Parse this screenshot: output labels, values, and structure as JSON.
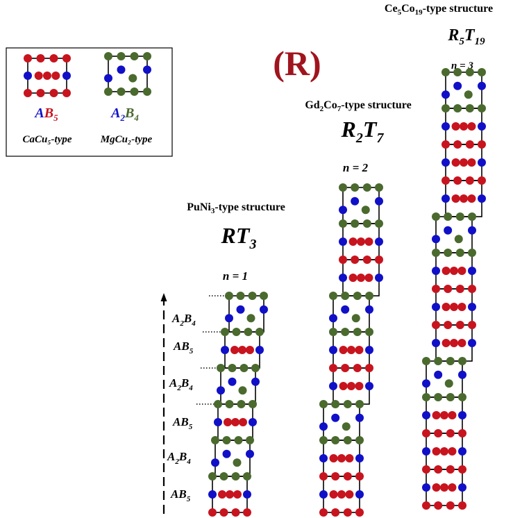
{
  "label": "(R)",
  "colors": {
    "A": "#1010c8",
    "B": "#c8141e",
    "green": "#4a6a2e",
    "line": "#000000"
  },
  "legend": {
    "cacu5": {
      "A": "A",
      "B": "B",
      "sub": "5",
      "type_label": "CaCu₅-type"
    },
    "mgcu2": {
      "A": "A",
      "sub_a": "2",
      "B": "B",
      "sub_b": "4",
      "type_label": "MgCu₂-type"
    }
  },
  "structures": [
    {
      "id": "rt3",
      "name_pre": "PuNi",
      "name_sub": "3",
      "name_post": "-type structure",
      "formula_r": "RT",
      "formula_r_sub": "",
      "formula_t_sub": "3",
      "n_label": "n  = 1"
    },
    {
      "id": "r2t7",
      "name_pre1": "Gd",
      "name_sub1": "2",
      "name_mid": "Co",
      "name_sub2": "7",
      "name_post": "-type structure",
      "formula_r": "R",
      "formula_r_sub": "2",
      "formula_t": "T",
      "formula_t_sub": "7",
      "n_label": "n  = 2"
    },
    {
      "id": "r5t19",
      "name_pre1": "Ce",
      "name_sub1": "5",
      "name_mid": "Co",
      "name_sub2": "19",
      "name_post": "-type structure",
      "formula_r": "R",
      "formula_r_sub": "5",
      "formula_t": "T",
      "formula_t_sub": "19",
      "n_label": "n  = 3"
    }
  ],
  "stack_labels": [
    {
      "A": "A",
      "sub_a": "2",
      "B": "B",
      "sub_b": "4"
    },
    {
      "A": "A",
      "B": "B",
      "sub_b": "5"
    },
    {
      "A": "A",
      "sub_a": "2",
      "B": "B",
      "sub_b": "4"
    },
    {
      "A": "A",
      "B": "B",
      "sub_b": "5"
    },
    {
      "A": "A",
      "sub_a": "2",
      "B": "B",
      "sub_b": "4"
    },
    {
      "A": "A",
      "B": "B",
      "sub_b": "5"
    }
  ]
}
